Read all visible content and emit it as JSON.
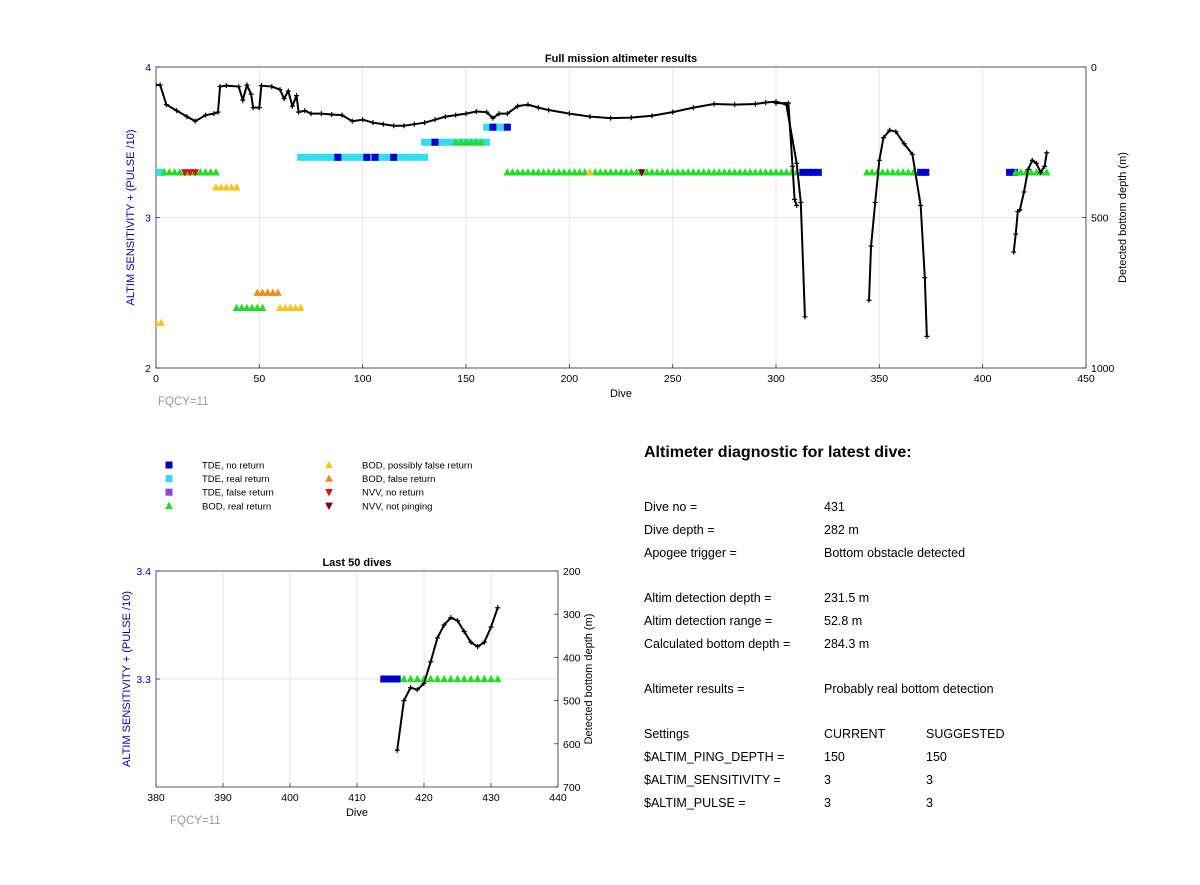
{
  "colors": {
    "tde_no": "#0000cc",
    "tde_real": "#33ddee",
    "tde_false": "#8844dd",
    "bod_real": "#22dd22",
    "bod_possible": "#f5c518",
    "bod_false": "#f08c10",
    "nvv_no": "#dd1111",
    "nvv_notping": "#770000",
    "depth_line": "#000000",
    "left_axis": "#0000aa",
    "fqcy": "#999999"
  },
  "fqcy_label": "FQCY=11",
  "legend": [
    {
      "key": "tde_no",
      "marker": "square",
      "label": "TDE, no return"
    },
    {
      "key": "tde_real",
      "marker": "square",
      "label": "TDE, real return"
    },
    {
      "key": "tde_false",
      "marker": "square",
      "label": "TDE, false return"
    },
    {
      "key": "bod_real",
      "marker": "triangle-up",
      "label": "BOD, real return"
    },
    {
      "key": "bod_possible",
      "marker": "triangle-up",
      "label": "BOD, possibly false return"
    },
    {
      "key": "bod_false",
      "marker": "triangle-up",
      "label": "BOD, false return"
    },
    {
      "key": "nvv_no",
      "marker": "triangle-down",
      "label": "NVV, no return"
    },
    {
      "key": "nvv_notping",
      "marker": "triangle-down",
      "label": "NVV, not pinging"
    }
  ],
  "chart_data": [
    {
      "type": "scatter",
      "title": "Full mission altimeter results",
      "xlabel": "Dive",
      "ylabel": "ALTIM SENSITIVITY + (PULSE /10)",
      "y2label": "Detected bottom depth (m)",
      "xlim": [
        0,
        450
      ],
      "ylim": [
        2,
        4
      ],
      "y2lim": [
        0,
        1000
      ],
      "y2_reversed": true,
      "xticks": [
        0,
        50,
        100,
        150,
        200,
        250,
        300,
        350,
        400,
        450
      ],
      "yticks": [
        2,
        3,
        4
      ],
      "y2ticks": [
        0,
        500,
        1000
      ],
      "grid": true,
      "marker_runs": [
        {
          "key": "tde_real",
          "marker": "square",
          "y": 3.3,
          "x": [
            0,
            4
          ]
        },
        {
          "key": "bod_real",
          "marker": "triangle-up",
          "y": 3.3,
          "x": [
            4,
            31
          ]
        },
        {
          "key": "nvv_no",
          "marker": "triangle-down",
          "y": 3.3,
          "x": [
            14,
            20
          ]
        },
        {
          "key": "bod_possible",
          "marker": "triangle-up",
          "y": 3.2,
          "x": [
            29,
            41
          ]
        },
        {
          "key": "tde_real",
          "marker": "square",
          "y": 3.4,
          "x": [
            70,
            130
          ]
        },
        {
          "key": "tde_real",
          "marker": "square",
          "y": 3.5,
          "x": [
            130,
            160
          ]
        },
        {
          "key": "bod_real",
          "marker": "triangle-up",
          "y": 3.5,
          "x": [
            145,
            158
          ]
        },
        {
          "key": "tde_real",
          "marker": "square",
          "y": 3.6,
          "x": [
            160,
            170
          ]
        },
        {
          "key": "bod_real",
          "marker": "triangle-up",
          "y": 3.3,
          "x": [
            170,
            312
          ]
        },
        {
          "key": "tde_no",
          "marker": "square",
          "y": 3.3,
          "x": [
            313,
            322
          ]
        },
        {
          "key": "bod_real",
          "marker": "triangle-up",
          "y": 3.3,
          "x": [
            344,
            370
          ]
        },
        {
          "key": "tde_no",
          "marker": "square",
          "y": 3.3,
          "x": [
            370,
            374
          ]
        },
        {
          "key": "tde_no",
          "marker": "square",
          "y": 3.3,
          "x": [
            413,
            416
          ]
        },
        {
          "key": "bod_real",
          "marker": "triangle-up",
          "y": 3.3,
          "x": [
            416,
            431
          ]
        },
        {
          "key": "bod_false",
          "marker": "triangle-up",
          "y": 2.5,
          "x": [
            49,
            61
          ]
        },
        {
          "key": "bod_real",
          "marker": "triangle-up",
          "y": 2.4,
          "x": [
            39,
            52
          ]
        },
        {
          "key": "bod_possible",
          "marker": "triangle-up",
          "y": 2.4,
          "x": [
            60,
            71
          ]
        },
        {
          "key": "bod_possible",
          "marker": "triangle-up",
          "y": 2.3,
          "x": [
            0,
            3
          ]
        }
      ],
      "marker_points": [
        {
          "key": "tde_no",
          "marker": "square",
          "y": 3.4,
          "x": [
            88,
            102,
            106,
            115
          ]
        },
        {
          "key": "tde_no",
          "marker": "square",
          "y": 3.5,
          "x": [
            135
          ]
        },
        {
          "key": "tde_no",
          "marker": "square",
          "y": 3.6,
          "x": [
            163,
            170
          ]
        },
        {
          "key": "nvv_notping",
          "marker": "triangle-down",
          "y": 3.3,
          "x": [
            235
          ]
        },
        {
          "key": "bod_possible",
          "marker": "triangle-up",
          "y": 3.3,
          "x": [
            210
          ]
        }
      ],
      "depth_segments": [
        [
          [
            0,
            60
          ],
          [
            2,
            60
          ],
          [
            5,
            125
          ],
          [
            10,
            145
          ],
          [
            15,
            165
          ],
          [
            19,
            180
          ],
          [
            24,
            160
          ],
          [
            28,
            155
          ],
          [
            30,
            150
          ],
          [
            31,
            65
          ],
          [
            34,
            62
          ],
          [
            40,
            65
          ],
          [
            42,
            110
          ],
          [
            44,
            60
          ],
          [
            46,
            90
          ],
          [
            47,
            135
          ],
          [
            50,
            135
          ],
          [
            51,
            62
          ],
          [
            56,
            65
          ],
          [
            60,
            75
          ],
          [
            62,
            105
          ],
          [
            64,
            80
          ],
          [
            66,
            130
          ],
          [
            68,
            95
          ],
          [
            69,
            150
          ],
          [
            72,
            145
          ],
          [
            75,
            155
          ],
          [
            80,
            155
          ],
          [
            85,
            158
          ],
          [
            90,
            160
          ],
          [
            95,
            180
          ],
          [
            100,
            175
          ],
          [
            105,
            185
          ],
          [
            110,
            190
          ],
          [
            115,
            195
          ],
          [
            120,
            195
          ],
          [
            125,
            190
          ],
          [
            130,
            185
          ],
          [
            135,
            175
          ],
          [
            140,
            165
          ],
          [
            145,
            160
          ],
          [
            150,
            155
          ],
          [
            155,
            148
          ],
          [
            160,
            150
          ],
          [
            163,
            170
          ],
          [
            166,
            155
          ],
          [
            170,
            155
          ],
          [
            175,
            130
          ],
          [
            180,
            125
          ],
          [
            185,
            135
          ],
          [
            190,
            143
          ],
          [
            200,
            155
          ],
          [
            210,
            165
          ],
          [
            220,
            170
          ],
          [
            230,
            168
          ],
          [
            240,
            162
          ],
          [
            250,
            150
          ],
          [
            260,
            135
          ],
          [
            270,
            123
          ],
          [
            280,
            125
          ],
          [
            290,
            123
          ],
          [
            295,
            118
          ],
          [
            300,
            115
          ],
          [
            305,
            125
          ],
          [
            310,
            320
          ],
          [
            312,
            450
          ],
          [
            314,
            830
          ]
        ],
        [
          [
            300,
            120
          ],
          [
            306,
            120
          ],
          [
            308,
            330
          ],
          [
            309,
            440
          ],
          [
            310,
            460
          ]
        ],
        [
          [
            345,
            775
          ],
          [
            346,
            595
          ],
          [
            348,
            450
          ],
          [
            350,
            310
          ],
          [
            352,
            235
          ],
          [
            355,
            210
          ],
          [
            358,
            215
          ],
          [
            362,
            255
          ],
          [
            366,
            290
          ],
          [
            370,
            460
          ],
          [
            372,
            700
          ],
          [
            373,
            895
          ]
        ],
        [
          [
            415,
            615
          ],
          [
            416,
            555
          ],
          [
            417,
            480
          ],
          [
            418,
            475
          ],
          [
            420,
            415
          ],
          [
            422,
            340
          ],
          [
            424,
            310
          ],
          [
            426,
            320
          ],
          [
            428,
            350
          ],
          [
            430,
            330
          ],
          [
            431,
            285
          ]
        ]
      ]
    },
    {
      "type": "scatter",
      "title": "Last 50 dives",
      "xlabel": "Dive",
      "ylabel": "ALTIM SENSITIVITY + (PULSE /10)",
      "y2label": "Detected bottom depth (m)",
      "xlim": [
        380,
        440
      ],
      "ylim": [
        3.2,
        3.4
      ],
      "y2lim": [
        200,
        700
      ],
      "y2_reversed": true,
      "xticks": [
        380,
        390,
        400,
        410,
        420,
        430,
        440
      ],
      "yticks": [
        3.3,
        3.4
      ],
      "y2ticks": [
        200,
        300,
        400,
        500,
        600,
        700
      ],
      "grid": true,
      "marker_runs": [
        {
          "key": "tde_no",
          "marker": "square",
          "y": 3.3,
          "x": [
            414,
            416
          ]
        },
        {
          "key": "bod_real",
          "marker": "triangle-up",
          "y": 3.3,
          "x": [
            417,
            431
          ]
        }
      ],
      "marker_points": [],
      "depth_segments": [
        [
          [
            416,
            615
          ],
          [
            417,
            500
          ],
          [
            418,
            470
          ],
          [
            419,
            475
          ],
          [
            420,
            460
          ],
          [
            421,
            410
          ],
          [
            422,
            355
          ],
          [
            423,
            325
          ],
          [
            424,
            308
          ],
          [
            425,
            315
          ],
          [
            426,
            340
          ],
          [
            427,
            365
          ],
          [
            428,
            375
          ],
          [
            429,
            365
          ],
          [
            430,
            330
          ],
          [
            431,
            285
          ]
        ]
      ]
    }
  ],
  "diagnostic": {
    "title": "Altimeter diagnostic for latest dive:",
    "rows": [
      {
        "label": "Dive no =",
        "v1": "431",
        "v2": ""
      },
      {
        "label": "Dive depth =",
        "v1": "282 m",
        "v2": ""
      },
      {
        "label": "Apogee trigger =",
        "v1": "Bottom obstacle detected",
        "v2": ""
      },
      {
        "label": "Altim detection depth =",
        "v1": "231.5 m",
        "v2": ""
      },
      {
        "label": "Altim detection range =",
        "v1": "52.8 m",
        "v2": ""
      },
      {
        "label": "Calculated bottom depth =",
        "v1": "284.3 m",
        "v2": ""
      },
      {
        "label": "Altimeter results =",
        "v1": "Probably real bottom detection",
        "v2": ""
      },
      {
        "label": "Settings",
        "v1": "CURRENT",
        "v2": "SUGGESTED"
      },
      {
        "label": "$ALTIM_PING_DEPTH =",
        "v1": "150",
        "v2": "150"
      },
      {
        "label": "$ALTIM_SENSITIVITY =",
        "v1": "3",
        "v2": "3"
      },
      {
        "label": "$ALTIM_PULSE =",
        "v1": "3",
        "v2": "3"
      }
    ]
  }
}
